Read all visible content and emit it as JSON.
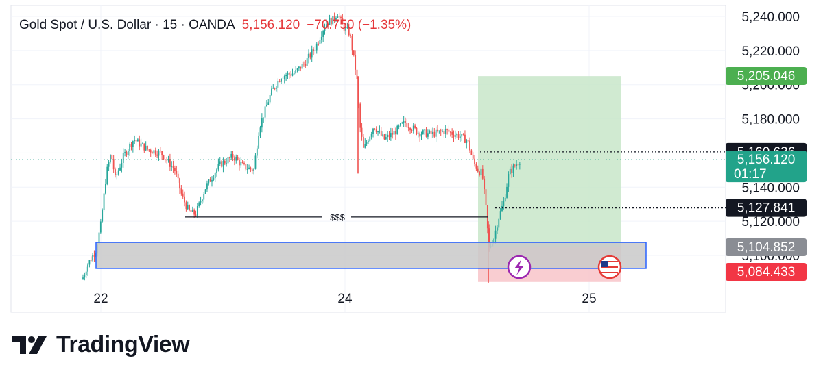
{
  "legend": {
    "symbol": "Gold Spot / U.S. Dollar · 15 · OANDA",
    "price": "5,156.120",
    "change": "−70.750 (−1.35%)"
  },
  "brand": {
    "name": "TradingView"
  },
  "icons": {
    "lightning": "lightning-event-icon",
    "flag": "us-flag-event-icon"
  },
  "colors": {
    "up": "#26a69a",
    "down": "#ef5350",
    "profit_zone": "#c8e6c9",
    "loss_zone": "#f8c8cc",
    "box_border": "#2962ff",
    "box_fill": "#c9c9c9",
    "tag_green": "#4caf50",
    "tag_teal": "#22a38a",
    "tag_black": "#131722",
    "tag_gray": "#8a8d94",
    "tag_red": "#f23645"
  },
  "chart_data": {
    "type": "candlestick",
    "title": "Gold Spot / U.S. Dollar · 15 · OANDA",
    "x_ticks": [
      "22",
      "24",
      "25"
    ],
    "y_ticks": [
      "5,240.000",
      "5,220.000",
      "5,200.000",
      "5,180.000",
      "5,160.000",
      "5,140.000",
      "5,120.000",
      "5,100.000"
    ],
    "ylim": [
      5075,
      5245
    ],
    "last_price": 5156.12,
    "countdown": "01:17",
    "price_tags": [
      {
        "label": "5,205.046",
        "value": 5205.046,
        "kind": "target"
      },
      {
        "label": "5,160.636",
        "value": 5160.636,
        "kind": "level"
      },
      {
        "label": "5,156.120",
        "value": 5156.12,
        "kind": "last"
      },
      {
        "label": "5,127.841",
        "value": 5127.841,
        "kind": "level"
      },
      {
        "label": "5,104.852",
        "value": 5104.852,
        "kind": "zone"
      },
      {
        "label": "5,084.433",
        "value": 5084.433,
        "kind": "stop"
      }
    ],
    "annotations": [
      {
        "text": "$$$",
        "value": 5122.5
      }
    ],
    "position": {
      "entry": 5104.852,
      "target": 5205.046,
      "stop": 5084.433
    },
    "zone": {
      "top": 5106,
      "bottom": 5094
    }
  }
}
